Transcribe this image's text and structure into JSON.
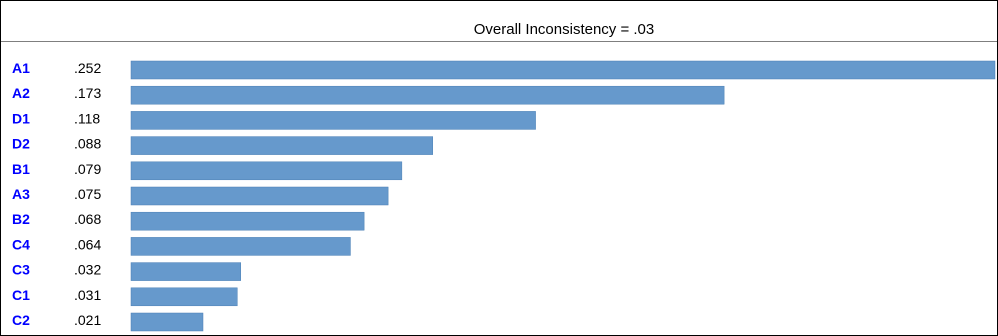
{
  "chart_data": {
    "type": "bar",
    "orientation": "horizontal",
    "title": "Overall Inconsistency = .03",
    "categories": [
      "A1",
      "A2",
      "D1",
      "D2",
      "B1",
      "A3",
      "B2",
      "C4",
      "C3",
      "C1",
      "C2"
    ],
    "value_labels": [
      ".252",
      ".173",
      ".118",
      ".088",
      ".079",
      ".075",
      ".068",
      ".064",
      ".032",
      ".031",
      ".021"
    ],
    "values": [
      0.252,
      0.173,
      0.118,
      0.088,
      0.079,
      0.075,
      0.068,
      0.064,
      0.032,
      0.031,
      0.021
    ],
    "xlim": [
      0,
      0.252
    ],
    "grid": false,
    "legend": "none",
    "colors": {
      "bar": "#6699cc",
      "bar_border": "#4a7fb5",
      "label": "#0000ff"
    }
  }
}
